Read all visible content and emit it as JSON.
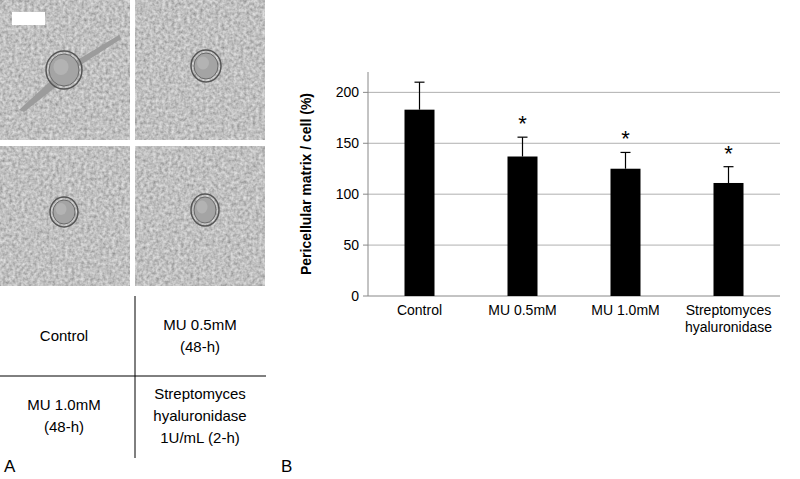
{
  "chart_data": {
    "type": "bar",
    "y_label": "Pericellular matrix / cell (%)",
    "categories": [
      "Control",
      "MU 0.5mM",
      "MU 1.0mM",
      "Streptomyces hyaluronidase"
    ],
    "values": [
      183,
      137,
      125,
      111
    ],
    "errors": [
      27,
      19,
      16,
      16
    ],
    "annotations": [
      null,
      "*",
      "*",
      "*"
    ],
    "color": "#000000",
    "ylim": [
      0,
      220
    ],
    "yticks": [
      0,
      50,
      100,
      150,
      200
    ],
    "grid": true
  },
  "panel_a": {
    "label": "A",
    "conditions": [
      [
        "Control"
      ],
      [
        "MU 0.5mM",
        "(48-h)"
      ],
      [
        "MU 1.0mM",
        "(48-h)"
      ],
      [
        "Streptomyces",
        "hyaluronidase",
        "1U/mL (2-h)"
      ]
    ]
  },
  "panel_b": {
    "label": "B"
  }
}
